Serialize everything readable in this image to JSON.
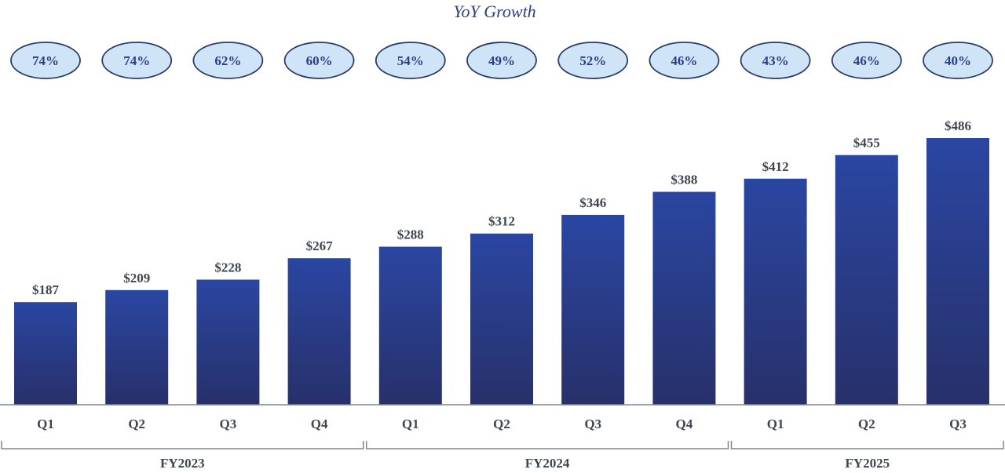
{
  "chart_data": {
    "type": "bar",
    "title": "YoY Growth",
    "categories": [
      "Q1",
      "Q2",
      "Q3",
      "Q4",
      "Q1",
      "Q2",
      "Q3",
      "Q4",
      "Q1",
      "Q2",
      "Q3"
    ],
    "groups": [
      {
        "label": "FY2023",
        "count": 4
      },
      {
        "label": "FY2024",
        "count": 4
      },
      {
        "label": "FY2025",
        "count": 3
      }
    ],
    "values": [
      187,
      209,
      228,
      267,
      288,
      312,
      346,
      388,
      412,
      455,
      486
    ],
    "value_labels": [
      "$187",
      "$209",
      "$228",
      "$267",
      "$288",
      "$312",
      "$346",
      "$388",
      "$412",
      "$455",
      "$486"
    ],
    "yoy_growth": [
      "74%",
      "74%",
      "62%",
      "60%",
      "54%",
      "49%",
      "52%",
      "46%",
      "43%",
      "46%",
      "40%"
    ],
    "xlabel": "",
    "ylabel": "",
    "ylim": [
      0,
      486
    ],
    "grid": false,
    "colors": {
      "bar_top": "#2a46a2",
      "bar_bottom": "#28306a",
      "bubble_fill": "#cfe5f7",
      "bubble_stroke": "#2a3a66",
      "axis": "#7f8790"
    }
  }
}
